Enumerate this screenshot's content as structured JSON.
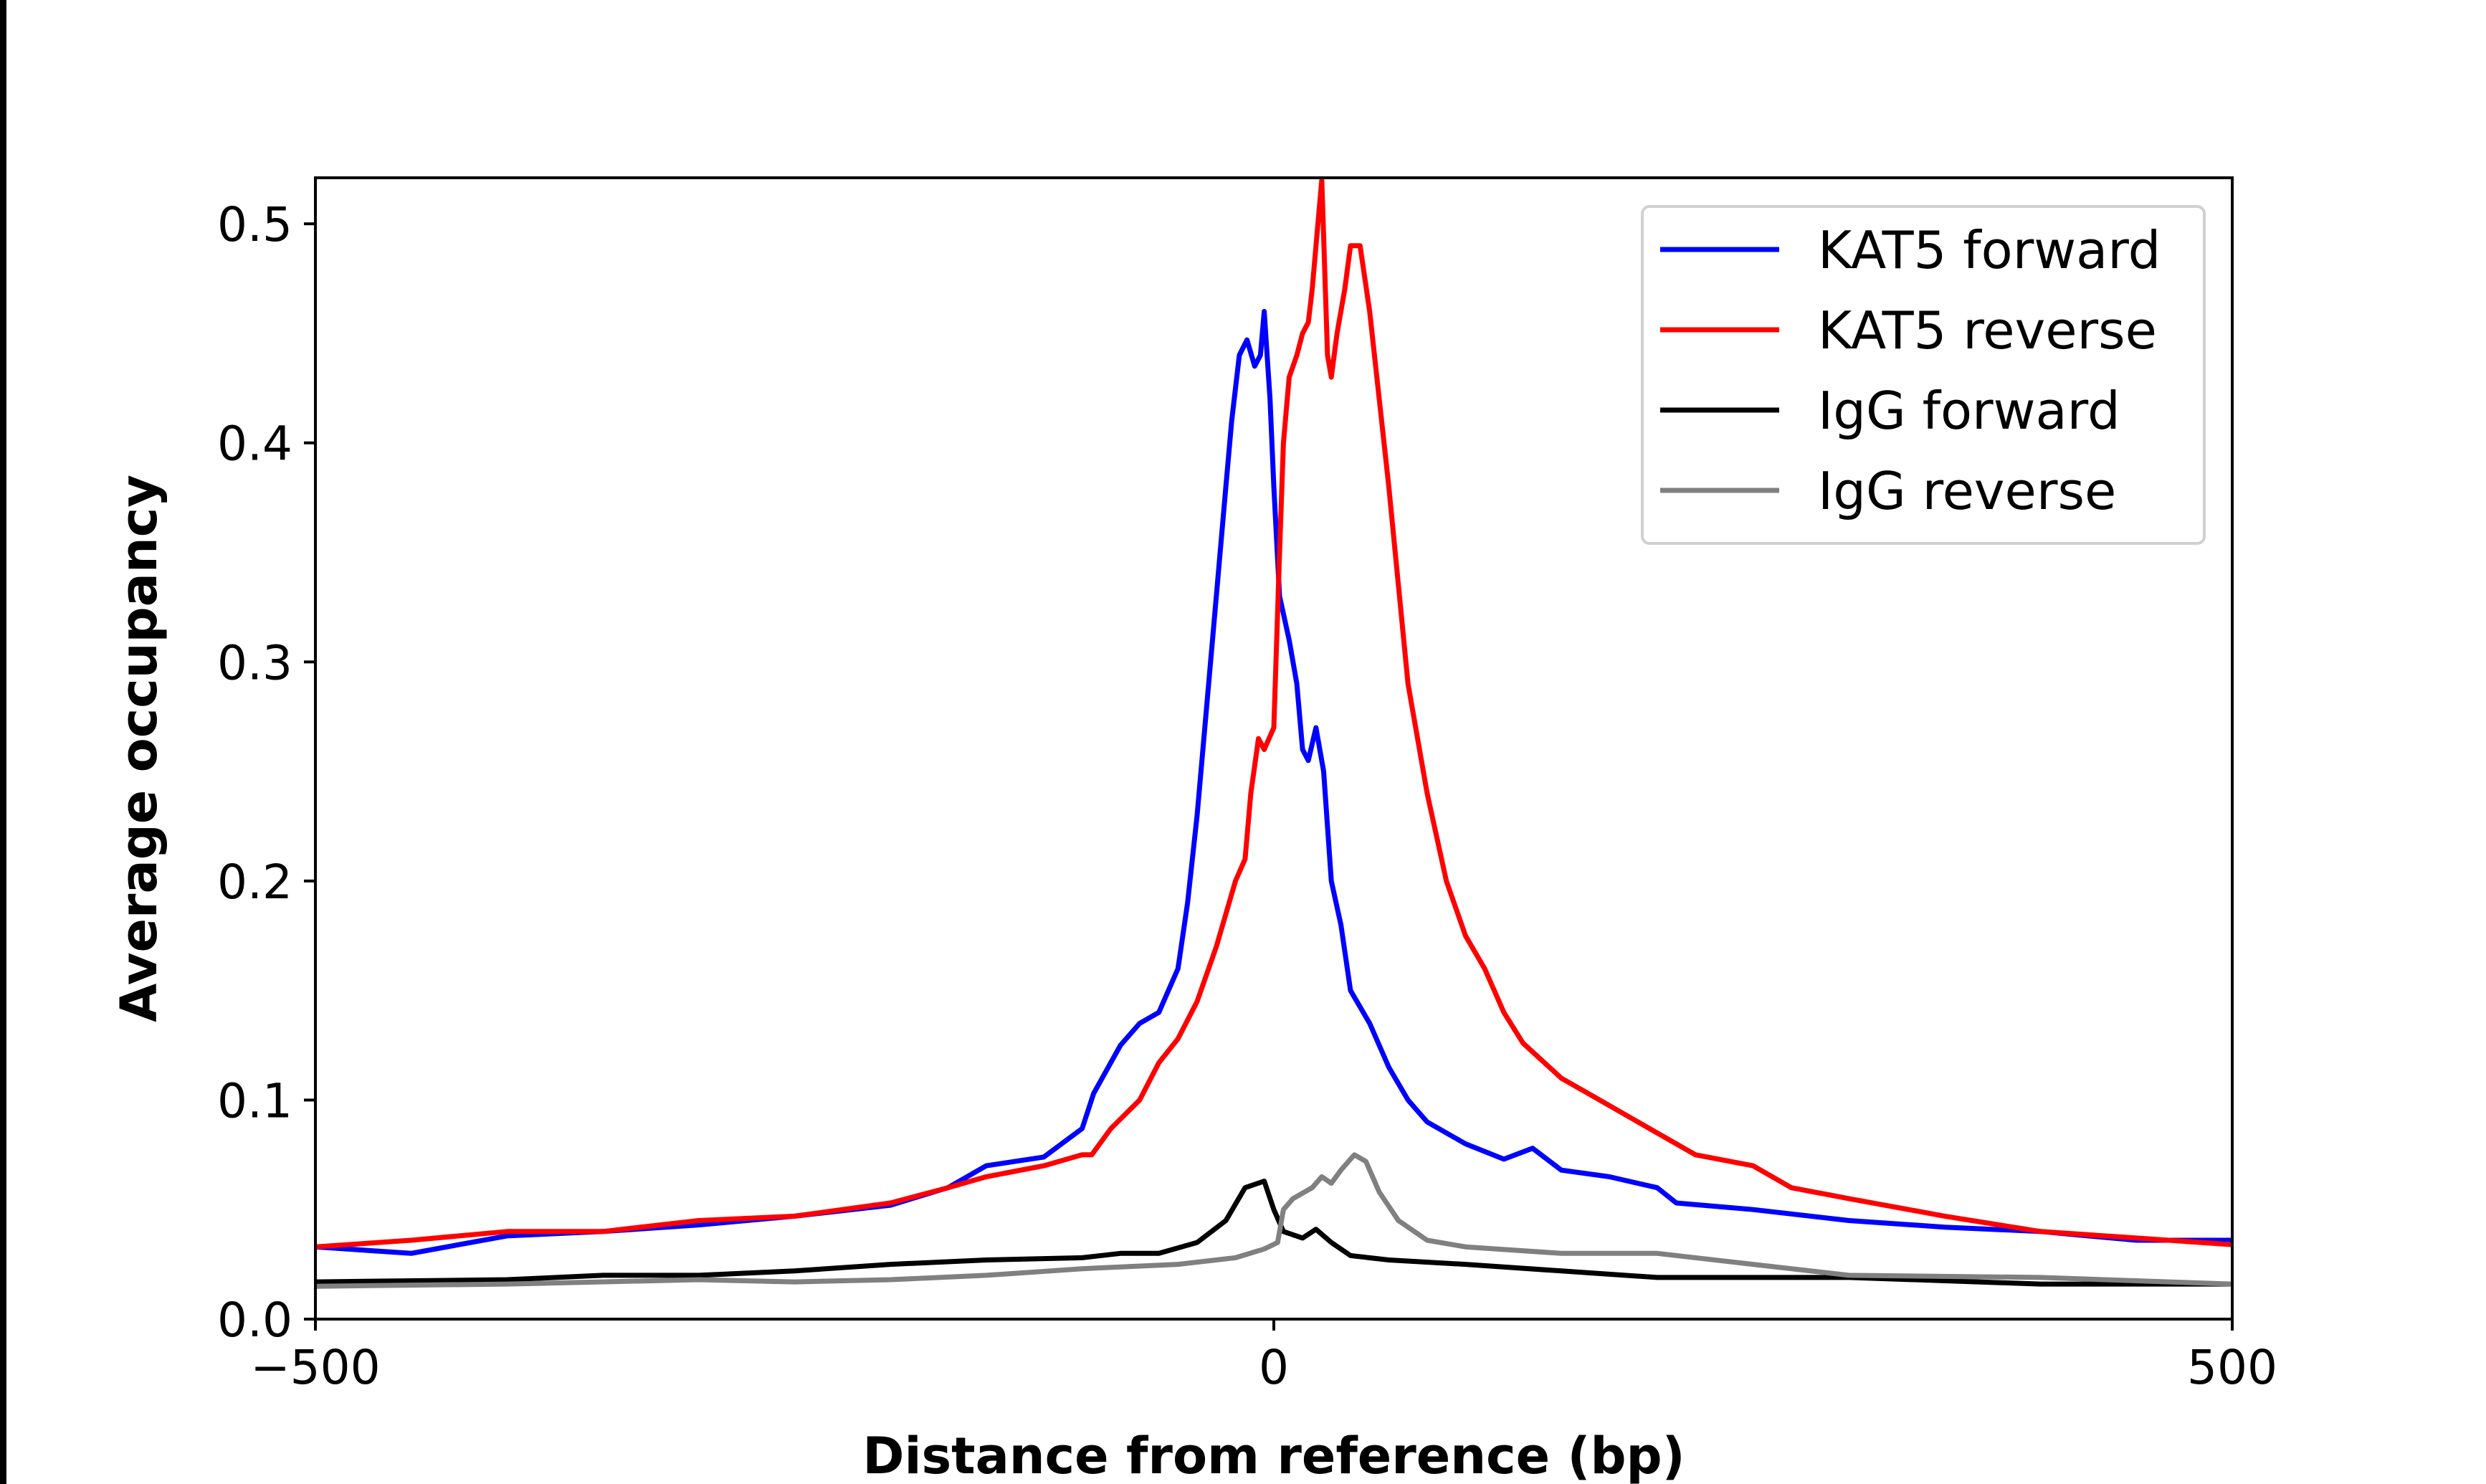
{
  "chart_data": {
    "type": "line",
    "title": "",
    "xlabel": "Distance from reference (bp)",
    "ylabel": "Average occupancy",
    "xlim": [
      -500,
      500
    ],
    "ylim": [
      0,
      0.521
    ],
    "xticks": [
      -500,
      0,
      500
    ],
    "xtick_labels": [
      "−500",
      "0",
      "500"
    ],
    "yticks": [
      0.0,
      0.1,
      0.2,
      0.3,
      0.4,
      0.5
    ],
    "ytick_labels": [
      "0.0",
      "0.1",
      "0.2",
      "0.3",
      "0.4",
      "0.5"
    ],
    "grid": false,
    "legend_position": "top-right",
    "series": [
      {
        "name": "KAT5 forward",
        "color": "#0000ff",
        "x": [
          -500,
          -450,
          -400,
          -350,
          -300,
          -250,
          -200,
          -170,
          -150,
          -120,
          -100,
          -94,
          -80,
          -70,
          -60,
          -50,
          -45,
          -40,
          -35,
          -30,
          -25,
          -22,
          -18,
          -14,
          -10,
          -7,
          -5,
          -2,
          0,
          3,
          8,
          12,
          15,
          18,
          22,
          26,
          30,
          35,
          40,
          50,
          60,
          70,
          80,
          100,
          120,
          135,
          150,
          175,
          200,
          210,
          250,
          300,
          350,
          400,
          450,
          500
        ],
        "y": [
          0.033,
          0.03,
          0.038,
          0.04,
          0.043,
          0.047,
          0.052,
          0.06,
          0.07,
          0.074,
          0.087,
          0.103,
          0.125,
          0.135,
          0.14,
          0.16,
          0.19,
          0.23,
          0.28,
          0.33,
          0.38,
          0.41,
          0.44,
          0.447,
          0.435,
          0.44,
          0.46,
          0.42,
          0.38,
          0.33,
          0.31,
          0.29,
          0.26,
          0.255,
          0.27,
          0.25,
          0.2,
          0.18,
          0.15,
          0.135,
          0.115,
          0.1,
          0.09,
          0.08,
          0.073,
          0.078,
          0.068,
          0.065,
          0.06,
          0.053,
          0.05,
          0.045,
          0.042,
          0.04,
          0.036,
          0.036
        ]
      },
      {
        "name": "KAT5 reverse",
        "color": "#ff0000",
        "x": [
          -500,
          -450,
          -400,
          -350,
          -300,
          -250,
          -200,
          -170,
          -150,
          -120,
          -100,
          -95,
          -85,
          -70,
          -60,
          -50,
          -40,
          -30,
          -20,
          -15,
          -12,
          -8,
          -5,
          0,
          3,
          5,
          8,
          12,
          15,
          18,
          20,
          23,
          25,
          28,
          30,
          33,
          37,
          40,
          45,
          50,
          60,
          70,
          80,
          90,
          100,
          110,
          120,
          130,
          150,
          170,
          200,
          220,
          250,
          270,
          300,
          350,
          400,
          450,
          500
        ],
        "y": [
          0.033,
          0.036,
          0.04,
          0.04,
          0.045,
          0.047,
          0.053,
          0.06,
          0.065,
          0.07,
          0.075,
          0.075,
          0.087,
          0.1,
          0.117,
          0.128,
          0.145,
          0.17,
          0.2,
          0.21,
          0.24,
          0.265,
          0.26,
          0.27,
          0.35,
          0.4,
          0.43,
          0.44,
          0.45,
          0.455,
          0.47,
          0.5,
          0.52,
          0.44,
          0.43,
          0.45,
          0.47,
          0.49,
          0.49,
          0.46,
          0.38,
          0.29,
          0.24,
          0.2,
          0.175,
          0.16,
          0.14,
          0.126,
          0.11,
          0.1,
          0.085,
          0.075,
          0.07,
          0.06,
          0.055,
          0.047,
          0.04,
          0.037,
          0.034
        ]
      },
      {
        "name": "IgG forward",
        "color": "#000000",
        "x": [
          -500,
          -400,
          -350,
          -300,
          -250,
          -200,
          -150,
          -100,
          -80,
          -60,
          -40,
          -25,
          -15,
          -5,
          0,
          5,
          15,
          22,
          30,
          40,
          60,
          100,
          150,
          200,
          300,
          400,
          500
        ],
        "y": [
          0.017,
          0.018,
          0.02,
          0.02,
          0.022,
          0.025,
          0.027,
          0.028,
          0.03,
          0.03,
          0.035,
          0.045,
          0.06,
          0.063,
          0.05,
          0.04,
          0.037,
          0.041,
          0.035,
          0.029,
          0.027,
          0.025,
          0.022,
          0.019,
          0.019,
          0.016,
          0.016
        ]
      },
      {
        "name": "IgG reverse",
        "color": "#808080",
        "x": [
          -500,
          -400,
          -300,
          -250,
          -200,
          -150,
          -100,
          -50,
          -20,
          -5,
          2,
          5,
          10,
          20,
          25,
          30,
          35,
          42,
          48,
          55,
          65,
          80,
          100,
          150,
          200,
          250,
          300,
          400,
          500
        ],
        "y": [
          0.015,
          0.016,
          0.018,
          0.017,
          0.018,
          0.02,
          0.023,
          0.025,
          0.028,
          0.032,
          0.035,
          0.05,
          0.055,
          0.06,
          0.065,
          0.062,
          0.068,
          0.075,
          0.072,
          0.058,
          0.045,
          0.036,
          0.033,
          0.03,
          0.03,
          0.025,
          0.02,
          0.019,
          0.016
        ]
      }
    ]
  }
}
